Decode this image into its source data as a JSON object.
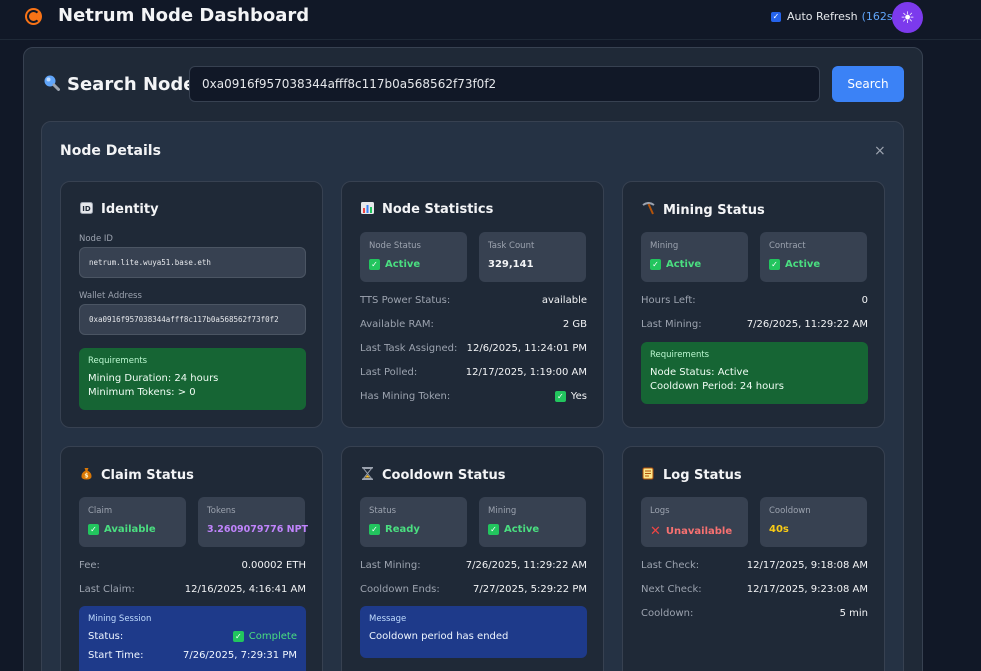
{
  "app": {
    "title": "Netrum Node Dashboard",
    "logo_icon": "netrum-logo-icon"
  },
  "auto_refresh": {
    "label": "Auto Refresh",
    "countdown": "(162s)",
    "checked": true
  },
  "theme_toggle_icon": "sun-icon",
  "search": {
    "title": "Search Node",
    "icon": "magnifier-icon",
    "value": "0xa0916f957038344afff8c117b0a568562f73f0f2",
    "button_label": "Search"
  },
  "details": {
    "title": "Node Details",
    "close_glyph": "×"
  },
  "identity": {
    "title": "Identity",
    "icon": "id-icon",
    "node_id_label": "Node ID",
    "node_id": "netrum.lite.wuya51.base.eth",
    "wallet_label": "Wallet Address",
    "wallet": "0xa0916f957038344afff8c117b0a568562f73f0f2",
    "requirements": {
      "title": "Requirements",
      "lines": [
        "Mining Duration: 24 hours",
        "Minimum Tokens: > 0"
      ]
    }
  },
  "node_stats": {
    "title": "Node Statistics",
    "icon": "bar-chart-icon",
    "node_status_label": "Node Status",
    "node_status": "Active",
    "task_count_label": "Task Count",
    "task_count": "329,141",
    "rows": [
      {
        "label": "TTS Power Status:",
        "value": "available"
      },
      {
        "label": "Available RAM:",
        "value": "2 GB"
      },
      {
        "label": "Last Task Assigned:",
        "value": "12/6/2025, 11:24:01 PM"
      },
      {
        "label": "Last Polled:",
        "value": "12/17/2025, 1:19:00 AM"
      },
      {
        "label": "Has Mining Token:",
        "value": "Yes"
      }
    ]
  },
  "mining_status": {
    "title": "Mining Status",
    "icon": "pickaxe-icon",
    "mining_label": "Mining",
    "mining": "Active",
    "contract_label": "Contract",
    "contract": "Active",
    "rows": [
      {
        "label": "Hours Left:",
        "value": "0"
      },
      {
        "label": "Last Mining:",
        "value": "7/26/2025, 11:29:22 AM"
      }
    ],
    "requirements": {
      "title": "Requirements",
      "lines": [
        "Node Status: Active",
        "Cooldown Period: 24 hours"
      ]
    }
  },
  "claim_status": {
    "title": "Claim Status",
    "icon": "money-bag-icon",
    "claim_label": "Claim",
    "claim": "Available",
    "tokens_label": "Tokens",
    "tokens": "3.2609079776 NPT",
    "rows": [
      {
        "label": "Fee:",
        "value": "0.00002 ETH"
      },
      {
        "label": "Last Claim:",
        "value": "12/16/2025, 4:16:41 AM"
      }
    ],
    "session": {
      "title": "Mining Session",
      "status_label": "Status:",
      "status": "Complete",
      "start_label": "Start Time:",
      "start": "7/26/2025, 7:29:31 PM"
    }
  },
  "cooldown_status": {
    "title": "Cooldown Status",
    "icon": "hourglass-icon",
    "status_label": "Status",
    "status": "Ready",
    "mining_label": "Mining",
    "mining": "Active",
    "rows": [
      {
        "label": "Last Mining:",
        "value": "7/26/2025, 11:29:22 AM"
      },
      {
        "label": "Cooldown Ends:",
        "value": "7/27/2025, 5:29:22 PM"
      }
    ],
    "message": {
      "title": "Message",
      "text": "Cooldown period has ended"
    }
  },
  "log_status": {
    "title": "Log Status",
    "icon": "scroll-icon",
    "logs_label": "Logs",
    "logs": "Unavailable",
    "cooldown_label": "Cooldown",
    "cooldown": "40s",
    "rows": [
      {
        "label": "Last Check:",
        "value": "12/17/2025, 9:18:08 AM"
      },
      {
        "label": "Next Check:",
        "value": "12/17/2025, 9:23:08 AM"
      },
      {
        "label": "Cooldown:",
        "value": "5 min"
      }
    ]
  },
  "colors": {
    "accent": "#3b82f6",
    "success": "#4ade80",
    "danger": "#ef4444",
    "warning": "#facc15",
    "tokens": "#c084fc",
    "theme_button": "#7c3aed"
  }
}
